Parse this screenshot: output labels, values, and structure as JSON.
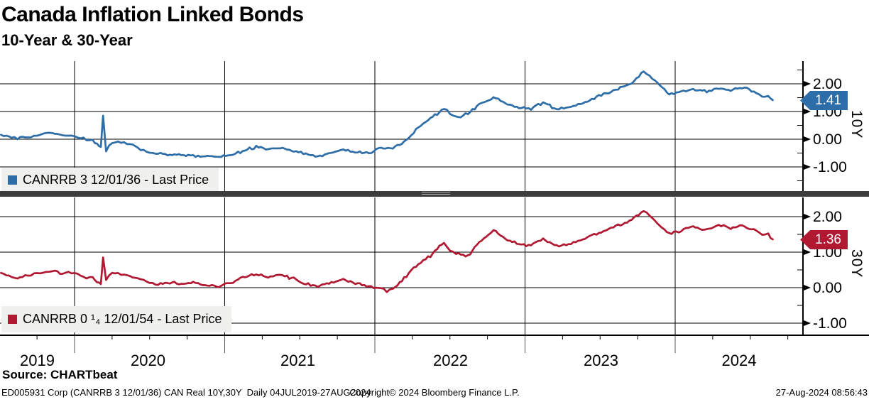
{
  "header": {
    "title": "Canada Inflation Linked Bonds",
    "subtitle": "10-Year & 30-Year"
  },
  "x_axis": {
    "year_labels": [
      "2019",
      "2020",
      "2021",
      "2022",
      "2023",
      "2024"
    ]
  },
  "footer": {
    "source": "Source: CHARTbeat",
    "info_left": "ED005931 Corp (CANRRB 3 12/01/36) CAN Real 10Y,30Y  Daily 04JUL2019-27AUG2024",
    "info_center": "Copyright© 2024 Bloomberg Finance L.P.",
    "info_right": "27-Aug-2024 08:56:43"
  },
  "colors": {
    "blue_line": "#2d6da8",
    "red_line": "#b01931",
    "separator": "#3d3d3d",
    "legend_background": "#f0f0ee"
  },
  "chart_data": [
    {
      "type": "line",
      "axis_label": "10Y",
      "legend": "CANRRB 3 12/01/36 - Last Price",
      "last_price": "1.41",
      "color": "#2d6da8",
      "x_unit": "decimal_year",
      "xlim": [
        2019.5,
        2024.85
      ],
      "ylim": [
        -1.9,
        2.8
      ],
      "yticks": [
        2.0,
        1.0,
        0.0,
        -1.0
      ],
      "ytick_labels": [
        "2.00",
        "1.00",
        "0.00",
        "-1.00"
      ],
      "grid": true,
      "legend_position": "bottom-left",
      "points": [
        [
          2019.51,
          0.18
        ],
        [
          2019.58,
          0.05
        ],
        [
          2019.62,
          0.02
        ],
        [
          2019.67,
          0.1
        ],
        [
          2019.71,
          0.08
        ],
        [
          2019.75,
          0.15
        ],
        [
          2019.79,
          0.18
        ],
        [
          2019.83,
          0.24
        ],
        [
          2019.87,
          0.22
        ],
        [
          2019.92,
          0.16
        ],
        [
          2019.96,
          0.14
        ],
        [
          2020.0,
          0.1
        ],
        [
          2020.04,
          0.06
        ],
        [
          2020.08,
          -0.02
        ],
        [
          2020.12,
          -0.05
        ],
        [
          2020.15,
          -0.18
        ],
        [
          2020.175,
          -0.28
        ],
        [
          2020.19,
          0.85
        ],
        [
          2020.21,
          -0.42
        ],
        [
          2020.25,
          -0.1
        ],
        [
          2020.29,
          -0.12
        ],
        [
          2020.33,
          -0.15
        ],
        [
          2020.37,
          -0.18
        ],
        [
          2020.42,
          -0.3
        ],
        [
          2020.46,
          -0.42
        ],
        [
          2020.5,
          -0.48
        ],
        [
          2020.54,
          -0.52
        ],
        [
          2020.62,
          -0.55
        ],
        [
          2020.71,
          -0.57
        ],
        [
          2020.79,
          -0.6
        ],
        [
          2020.87,
          -0.62
        ],
        [
          2020.96,
          -0.64
        ],
        [
          2021.04,
          -0.58
        ],
        [
          2021.12,
          -0.42
        ],
        [
          2021.21,
          -0.28
        ],
        [
          2021.29,
          -0.36
        ],
        [
          2021.37,
          -0.3
        ],
        [
          2021.46,
          -0.42
        ],
        [
          2021.54,
          -0.55
        ],
        [
          2021.62,
          -0.6
        ],
        [
          2021.71,
          -0.48
        ],
        [
          2021.79,
          -0.38
        ],
        [
          2021.87,
          -0.46
        ],
        [
          2021.96,
          -0.5
        ],
        [
          2022.04,
          -0.3
        ],
        [
          2022.12,
          -0.32
        ],
        [
          2022.21,
          -0.05
        ],
        [
          2022.29,
          0.45
        ],
        [
          2022.37,
          0.75
        ],
        [
          2022.46,
          1.1
        ],
        [
          2022.5,
          0.95
        ],
        [
          2022.54,
          0.78
        ],
        [
          2022.62,
          0.92
        ],
        [
          2022.71,
          1.3
        ],
        [
          2022.79,
          1.52
        ],
        [
          2022.87,
          1.28
        ],
        [
          2022.96,
          1.15
        ],
        [
          2023.04,
          1.1
        ],
        [
          2023.12,
          1.32
        ],
        [
          2023.21,
          1.1
        ],
        [
          2023.29,
          1.14
        ],
        [
          2023.37,
          1.28
        ],
        [
          2023.46,
          1.48
        ],
        [
          2023.54,
          1.66
        ],
        [
          2023.62,
          1.82
        ],
        [
          2023.71,
          2.02
        ],
        [
          2023.79,
          2.45
        ],
        [
          2023.83,
          2.28
        ],
        [
          2023.88,
          2.05
        ],
        [
          2023.96,
          1.62
        ],
        [
          2024.04,
          1.7
        ],
        [
          2024.12,
          1.8
        ],
        [
          2024.21,
          1.72
        ],
        [
          2024.29,
          1.86
        ],
        [
          2024.37,
          1.76
        ],
        [
          2024.46,
          1.88
        ],
        [
          2024.54,
          1.68
        ],
        [
          2024.58,
          1.52
        ],
        [
          2024.62,
          1.56
        ],
        [
          2024.65,
          1.41
        ]
      ]
    },
    {
      "type": "line",
      "axis_label": "30Y",
      "legend": "CANRRB 0 ¹₄ 12/01/54 - Last Price",
      "last_price": "1.36",
      "color": "#b01931",
      "x_unit": "decimal_year",
      "xlim": [
        2019.5,
        2024.85
      ],
      "ylim": [
        -1.35,
        2.55
      ],
      "yticks": [
        2.0,
        1.0,
        0.0,
        -1.0
      ],
      "ytick_labels": [
        "2.00",
        "1.00",
        "0.00",
        "-1.00"
      ],
      "grid": true,
      "legend_position": "bottom-left",
      "points": [
        [
          2019.51,
          0.42
        ],
        [
          2019.58,
          0.3
        ],
        [
          2019.62,
          0.26
        ],
        [
          2019.67,
          0.36
        ],
        [
          2019.71,
          0.33
        ],
        [
          2019.75,
          0.4
        ],
        [
          2019.79,
          0.43
        ],
        [
          2019.83,
          0.48
        ],
        [
          2019.87,
          0.46
        ],
        [
          2019.92,
          0.4
        ],
        [
          2019.96,
          0.42
        ],
        [
          2020.0,
          0.38
        ],
        [
          2020.04,
          0.35
        ],
        [
          2020.08,
          0.28
        ],
        [
          2020.12,
          0.26
        ],
        [
          2020.15,
          0.18
        ],
        [
          2020.175,
          0.1
        ],
        [
          2020.19,
          0.85
        ],
        [
          2020.21,
          0.22
        ],
        [
          2020.25,
          0.42
        ],
        [
          2020.29,
          0.38
        ],
        [
          2020.33,
          0.35
        ],
        [
          2020.37,
          0.32
        ],
        [
          2020.42,
          0.26
        ],
        [
          2020.46,
          0.2
        ],
        [
          2020.5,
          0.14
        ],
        [
          2020.54,
          0.1
        ],
        [
          2020.62,
          0.16
        ],
        [
          2020.71,
          0.1
        ],
        [
          2020.79,
          0.14
        ],
        [
          2020.87,
          0.08
        ],
        [
          2020.96,
          0.04
        ],
        [
          2021.04,
          0.12
        ],
        [
          2021.12,
          0.28
        ],
        [
          2021.21,
          0.38
        ],
        [
          2021.29,
          0.3
        ],
        [
          2021.37,
          0.36
        ],
        [
          2021.46,
          0.25
        ],
        [
          2021.54,
          0.1
        ],
        [
          2021.62,
          0.05
        ],
        [
          2021.71,
          0.16
        ],
        [
          2021.79,
          0.22
        ],
        [
          2021.87,
          0.12
        ],
        [
          2021.96,
          0.02
        ],
        [
          2022.04,
          0.0
        ],
        [
          2022.08,
          -0.1
        ],
        [
          2022.12,
          -0.02
        ],
        [
          2022.21,
          0.32
        ],
        [
          2022.29,
          0.68
        ],
        [
          2022.37,
          0.9
        ],
        [
          2022.46,
          1.28
        ],
        [
          2022.5,
          1.05
        ],
        [
          2022.54,
          0.95
        ],
        [
          2022.62,
          0.9
        ],
        [
          2022.71,
          1.35
        ],
        [
          2022.79,
          1.62
        ],
        [
          2022.87,
          1.38
        ],
        [
          2022.96,
          1.22
        ],
        [
          2023.04,
          1.2
        ],
        [
          2023.12,
          1.38
        ],
        [
          2023.21,
          1.18
        ],
        [
          2023.29,
          1.24
        ],
        [
          2023.37,
          1.34
        ],
        [
          2023.46,
          1.5
        ],
        [
          2023.54,
          1.62
        ],
        [
          2023.62,
          1.76
        ],
        [
          2023.71,
          1.9
        ],
        [
          2023.79,
          2.16
        ],
        [
          2023.83,
          2.02
        ],
        [
          2023.88,
          1.82
        ],
        [
          2023.96,
          1.52
        ],
        [
          2024.04,
          1.6
        ],
        [
          2024.12,
          1.72
        ],
        [
          2024.21,
          1.62
        ],
        [
          2024.29,
          1.78
        ],
        [
          2024.37,
          1.68
        ],
        [
          2024.46,
          1.74
        ],
        [
          2024.54,
          1.6
        ],
        [
          2024.58,
          1.48
        ],
        [
          2024.62,
          1.5
        ],
        [
          2024.65,
          1.36
        ]
      ]
    }
  ]
}
